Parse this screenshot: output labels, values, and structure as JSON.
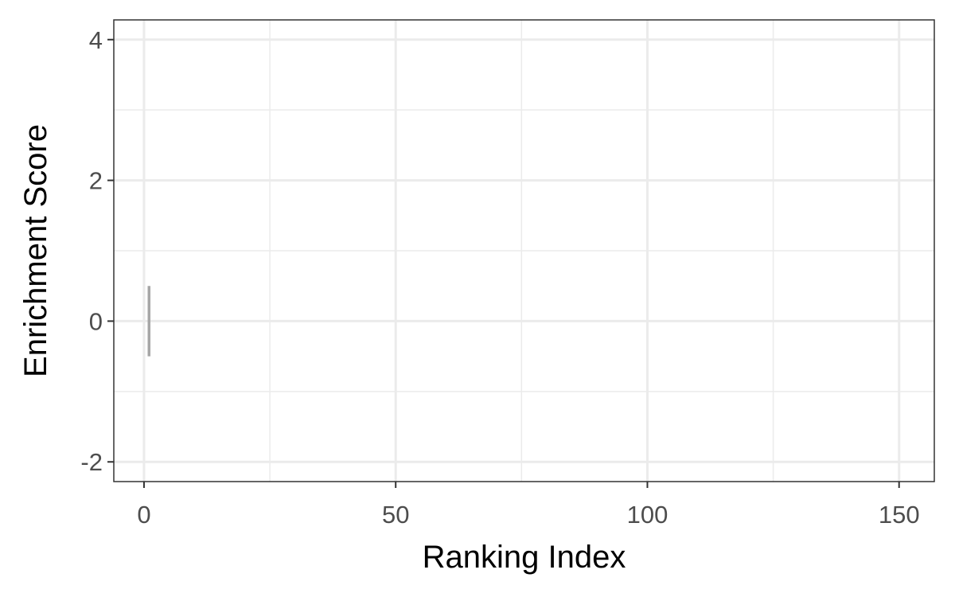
{
  "chart_data": {
    "type": "line",
    "title": "",
    "xlabel": "Ranking Index",
    "ylabel": "Enrichment Score",
    "xlim": [
      -6,
      157
    ],
    "ylim": [
      -2.28,
      4.28
    ],
    "x_ticks": [
      0,
      50,
      100,
      150
    ],
    "x_tick_labels": [
      "0",
      "50",
      "100",
      "150"
    ],
    "x_minor_ticks": [
      25,
      75,
      125
    ],
    "y_ticks": [
      -2,
      0,
      2,
      4
    ],
    "y_tick_labels": [
      "-2",
      "0",
      "2",
      "4"
    ],
    "y_minor_ticks": [
      -1,
      1,
      3
    ],
    "grid": true,
    "legend": "none",
    "colors": {
      "panel_background": "#ffffff",
      "grid_major": "#ebebeb",
      "grid_minor": "#ebebeb",
      "panel_border": "#333333",
      "segment": "#a6a6a6"
    },
    "segments": [
      {
        "x": 1,
        "y_start": -0.5,
        "y_end": 0.5
      }
    ]
  }
}
